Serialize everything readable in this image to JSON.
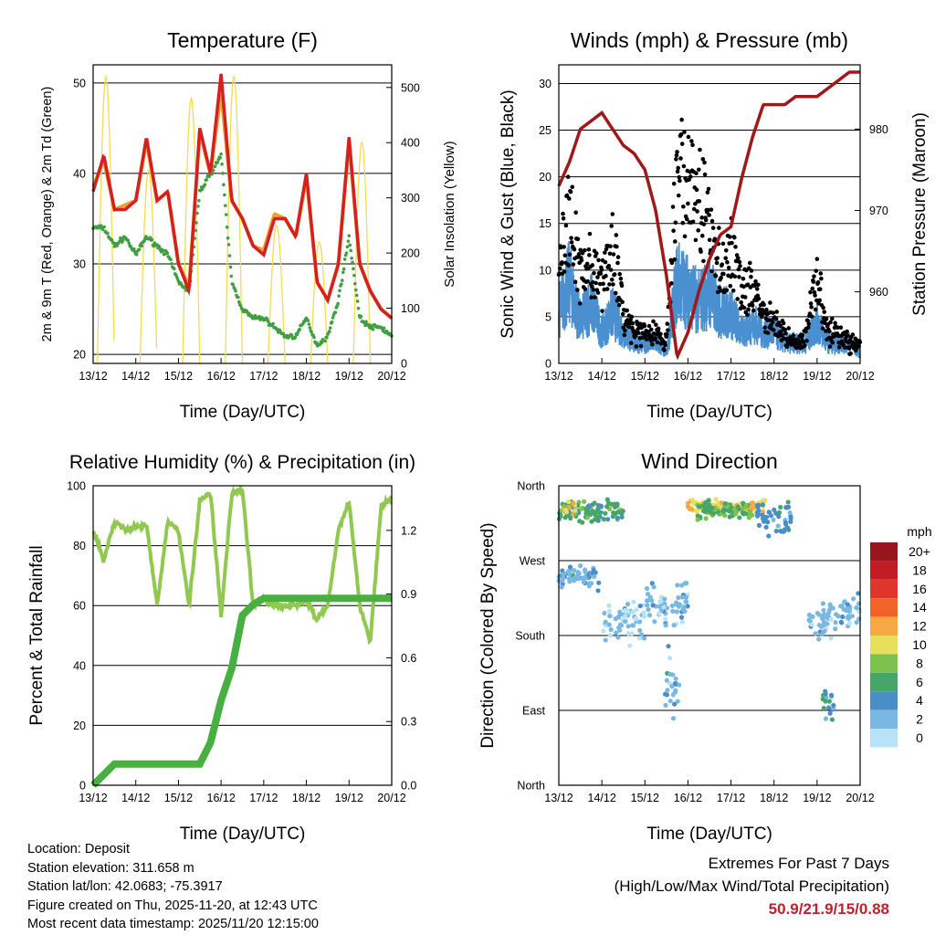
{
  "chart_data": [
    {
      "type": "line",
      "title": "Temperature (F)",
      "xlabel": "Time (Day/UTC)",
      "ylabel": "2m & 9m T (Red, Orange) & 2m Td (Green)",
      "y2label": "Solar Insolation (Yellow)",
      "xticks": [
        "13/12",
        "14/12",
        "15/12",
        "16/12",
        "17/12",
        "18/12",
        "19/12",
        "20/12"
      ],
      "ylim": [
        19,
        52
      ],
      "yticks": [
        20,
        30,
        40,
        50
      ],
      "y2lim": [
        0,
        541
      ],
      "y2ticks": [
        0,
        100,
        200,
        300,
        400,
        500
      ],
      "x_days_step": 0.25,
      "series": [
        {
          "name": "2m T",
          "color": "#d42020",
          "values": [
            38,
            42,
            36,
            36,
            37,
            44,
            37,
            38,
            30,
            27,
            45,
            40,
            51,
            37,
            35,
            32,
            31,
            35,
            35,
            33,
            40,
            28,
            26,
            30,
            44,
            30,
            27,
            25,
            24
          ]
        },
        {
          "name": "9m T",
          "color": "#f0a030",
          "values": [
            38.5,
            41.5,
            36,
            36.5,
            37,
            43.5,
            37,
            38,
            30,
            27.5,
            44.5,
            40,
            49,
            37,
            35,
            32,
            31.5,
            35.5,
            35,
            33,
            39.5,
            28,
            26,
            30,
            43.5,
            30,
            27,
            25,
            24
          ]
        },
        {
          "name": "2m Td",
          "color": "#40a040",
          "values": [
            34,
            34,
            32,
            33,
            31,
            33,
            32,
            31,
            28,
            27,
            38,
            40,
            42,
            28,
            25,
            24,
            24,
            23,
            22,
            22,
            24,
            21,
            22,
            26,
            33,
            24,
            23,
            23,
            22
          ]
        },
        {
          "name": "Solar Insolation",
          "color": "#f5dc50",
          "daily_peak_day": [
            0.3,
            1.3,
            2.3,
            3.3,
            4.3,
            5.3,
            6.3
          ],
          "daily_peak_values": [
            520,
            350,
            480,
            520,
            250,
            220,
            400
          ]
        }
      ]
    },
    {
      "type": "scatter",
      "title": "Winds (mph) & Pressure (mb)",
      "xlabel": "Time (Day/UTC)",
      "ylabel": "Sonic Wind & Gust (Blue, Black)",
      "y2label": "Station Pressure (Maroon)",
      "xticks": [
        "13/12",
        "14/12",
        "15/12",
        "16/12",
        "17/12",
        "18/12",
        "19/12",
        "20/12"
      ],
      "ylim": [
        0,
        32
      ],
      "yticks": [
        0,
        5,
        10,
        15,
        20,
        25,
        30
      ],
      "y2lim": [
        951.2,
        987.9
      ],
      "y2ticks": [
        960,
        970,
        980
      ],
      "x_days_step": 0.25,
      "series": [
        {
          "name": "Sonic Wind",
          "color": "#4a90d0",
          "values": [
            5,
            8,
            4,
            6,
            3,
            5,
            3,
            2,
            2,
            2,
            1,
            8,
            7,
            6,
            7,
            5,
            5,
            3,
            4,
            3,
            3,
            2,
            2,
            2,
            4,
            2,
            2,
            2,
            1
          ]
        },
        {
          "name": "Gust",
          "color": "#000000",
          "values": [
            12,
            15,
            9,
            10,
            8,
            12,
            5,
            3,
            3,
            3,
            2,
            21,
            18,
            17,
            14,
            10,
            12,
            7,
            8,
            5,
            4,
            3,
            2,
            3,
            9,
            3,
            3,
            2,
            2
          ]
        },
        {
          "name": "Station Pressure",
          "color": "#a01818",
          "values": [
            973,
            976,
            980,
            981,
            982,
            980,
            978,
            977,
            975,
            970,
            962,
            952,
            955,
            960,
            964,
            967,
            968,
            974,
            979,
            983,
            983,
            983,
            984,
            984,
            984,
            985,
            986,
            987,
            987
          ]
        }
      ]
    },
    {
      "type": "line",
      "title": "Relative Humidity (%) & Precipitation (in)",
      "xlabel": "Time (Day/UTC)",
      "ylabel": "Percent & Total Rainfall",
      "xticks": [
        "13/12",
        "14/12",
        "15/12",
        "16/12",
        "17/12",
        "18/12",
        "19/12",
        "20/12"
      ],
      "ylim": [
        0,
        100
      ],
      "yticks": [
        0,
        20,
        40,
        60,
        80,
        100
      ],
      "y2lim": [
        0,
        1.41
      ],
      "y2ticks": [
        "0.0",
        "0.3",
        "0.6",
        "0.9",
        "1.2"
      ],
      "x_days_step": 0.25,
      "series": [
        {
          "name": "Relative Humidity",
          "color": "#90c850",
          "values": [
            85,
            75,
            88,
            85,
            86,
            87,
            60,
            88,
            85,
            60,
            95,
            98,
            57,
            97,
            99,
            60,
            62,
            60,
            60,
            60,
            62,
            55,
            60,
            85,
            95,
            60,
            48,
            93,
            96
          ]
        },
        {
          "name": "Total Precipitation",
          "color": "#48b040",
          "values": [
            0,
            0.05,
            0.1,
            0.1,
            0.1,
            0.1,
            0.1,
            0.1,
            0.1,
            0.1,
            0.1,
            0.2,
            0.4,
            0.55,
            0.8,
            0.85,
            0.88,
            0.88,
            0.88,
            0.88,
            0.88,
            0.88,
            0.88,
            0.88,
            0.88,
            0.88,
            0.88,
            0.88,
            0.88
          ]
        }
      ]
    },
    {
      "type": "scatter",
      "title": "Wind Direction",
      "xlabel": "Time (Day/UTC)",
      "ylabel": "Direction (Colored By Speed)",
      "xticks": [
        "13/12",
        "14/12",
        "15/12",
        "16/12",
        "17/12",
        "18/12",
        "19/12",
        "20/12"
      ],
      "ylim": [
        0,
        360
      ],
      "yticks": [
        "North",
        "East",
        "South",
        "West",
        "North"
      ],
      "clusters_day_start_end_dir_spread_speed": [
        [
          0,
          1.5,
          330,
          20,
          6
        ],
        [
          0.1,
          0.4,
          335,
          12,
          10
        ],
        [
          0,
          1,
          250,
          20,
          3
        ],
        [
          1,
          2,
          200,
          40,
          1
        ],
        [
          2,
          3,
          220,
          40,
          2
        ],
        [
          2.4,
          2.8,
          120,
          60,
          3
        ],
        [
          3,
          4.8,
          335,
          10,
          11
        ],
        [
          3.2,
          4.5,
          330,
          15,
          7
        ],
        [
          4.6,
          5.4,
          320,
          25,
          4
        ],
        [
          5.8,
          6.6,
          200,
          30,
          2
        ],
        [
          6.1,
          6.4,
          100,
          30,
          4
        ],
        [
          6.6,
          7,
          210,
          25,
          2
        ]
      ],
      "legend": {
        "title": "mph",
        "labels": [
          "20+",
          "18",
          "16",
          "14",
          "12",
          "10",
          "8",
          "6",
          "4",
          "2",
          "0"
        ],
        "colors": [
          "#96161c",
          "#c21c24",
          "#e0352a",
          "#f26328",
          "#f8a843",
          "#e8e05a",
          "#7cc24c",
          "#46a66a",
          "#4a8ec8",
          "#7ab8e4",
          "#b8e2f8"
        ]
      }
    }
  ],
  "info": {
    "location": "Location: Deposit",
    "elevation": "Station elevation: 311.658 m",
    "latlon": "Station lat/lon: 42.0683; -75.3917",
    "created": "Figure created on Thu, 2025-11-20, at 12:43 UTC",
    "recent": "Most recent data timestamp: 2025/11/20 12:15:00"
  },
  "extremes": {
    "title": "Extremes For Past 7 Days",
    "subtitle": "(High/Low/Max Wind/Total Precipitation)",
    "values": "50.9/21.9/15/0.88"
  }
}
